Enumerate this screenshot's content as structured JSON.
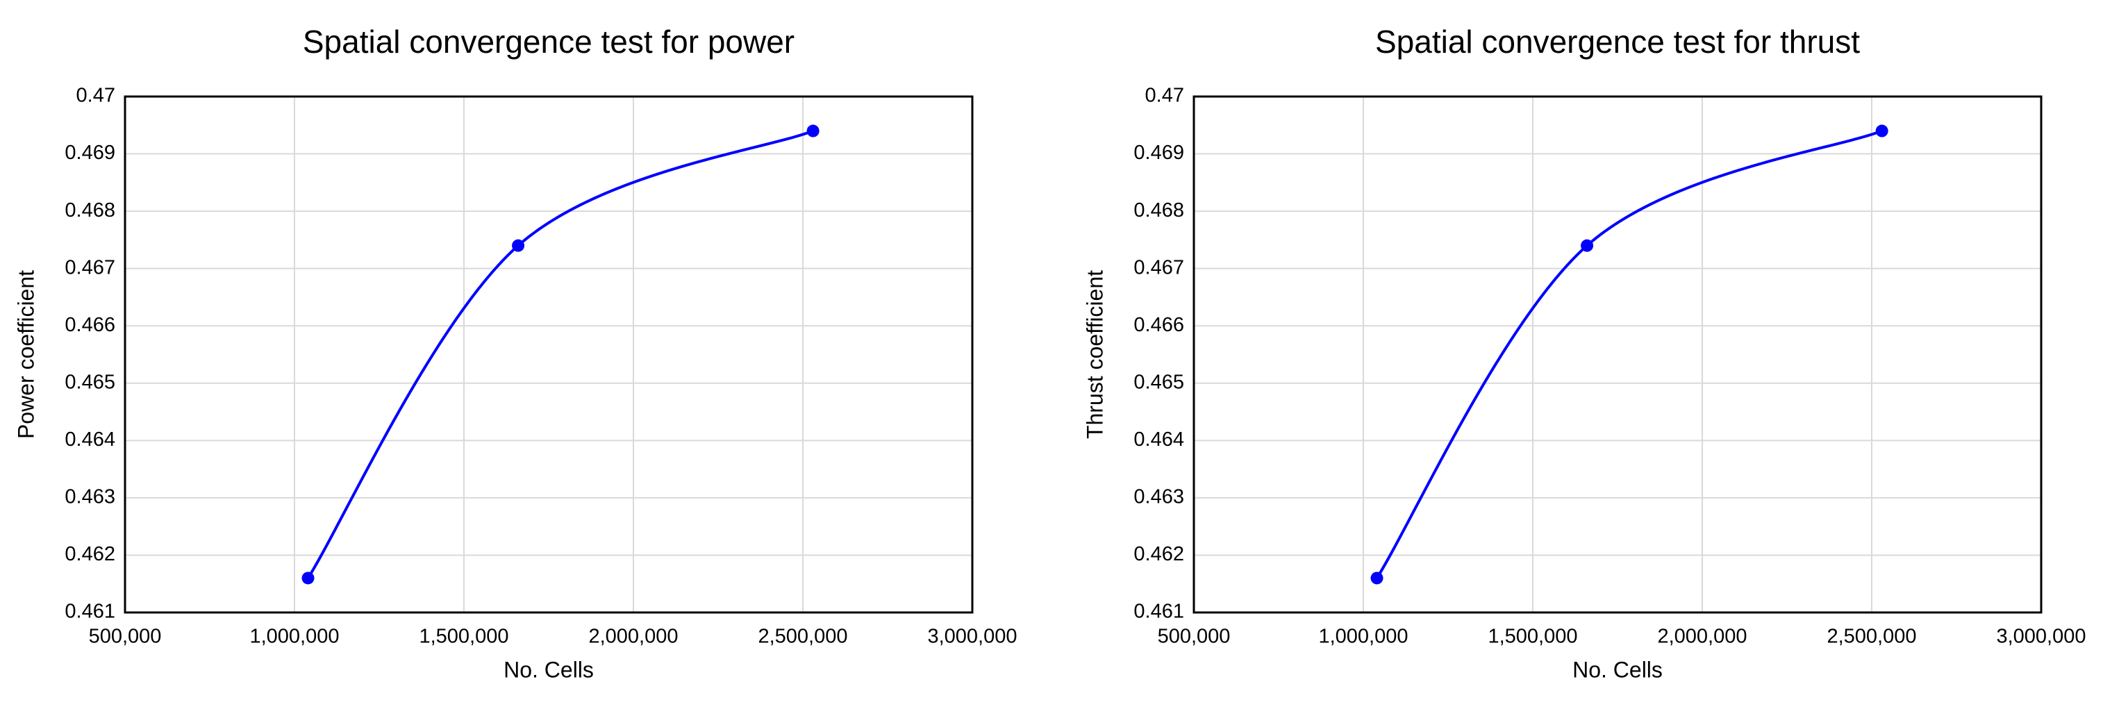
{
  "chart_data": [
    {
      "type": "line",
      "title": "Spatial convergence test for power",
      "x_label": "No. Cells",
      "y_label": "Power coefficient",
      "x": [
        1040000,
        1660000,
        2530000
      ],
      "series": [
        {
          "color": "#0000ff",
          "values": [
            0.4616,
            0.4674,
            0.4694
          ]
        }
      ],
      "xlim": [
        500000,
        3000000
      ],
      "xticks": [
        {
          "value": 500000,
          "label": "500,000"
        },
        {
          "value": 1000000,
          "label": "1,000,000"
        },
        {
          "value": 1500000,
          "label": "1,500,000"
        },
        {
          "value": 2000000,
          "label": "2,000,000"
        },
        {
          "value": 2500000,
          "label": "2,500,000"
        },
        {
          "value": 3000000,
          "label": "3,000,000"
        }
      ],
      "ylim": [
        0.461,
        0.47
      ],
      "yticks": [
        0.461,
        0.462,
        0.463,
        0.464,
        0.465,
        0.466,
        0.467,
        0.468,
        0.469,
        0.47
      ],
      "grid": true,
      "smooth": true
    },
    {
      "type": "line",
      "title": "Spatial convergence test for thrust",
      "x_label": "No. Cells",
      "y_label": "Thrust coefficient",
      "x": [
        1040000,
        1660000,
        2530000
      ],
      "series": [
        {
          "color": "#0000ff",
          "values": [
            0.4616,
            0.4674,
            0.4694
          ]
        }
      ],
      "xlim": [
        500000,
        3000000
      ],
      "xticks": [
        {
          "value": 500000,
          "label": "500,000"
        },
        {
          "value": 1000000,
          "label": "1,000,000"
        },
        {
          "value": 1500000,
          "label": "1,500,000"
        },
        {
          "value": 2000000,
          "label": "2,000,000"
        },
        {
          "value": 2500000,
          "label": "2,500,000"
        },
        {
          "value": 3000000,
          "label": "3,000,000"
        }
      ],
      "ylim": [
        0.461,
        0.47
      ],
      "yticks": [
        0.461,
        0.462,
        0.463,
        0.464,
        0.465,
        0.466,
        0.467,
        0.468,
        0.469,
        0.47
      ],
      "grid": true,
      "smooth": true
    }
  ]
}
